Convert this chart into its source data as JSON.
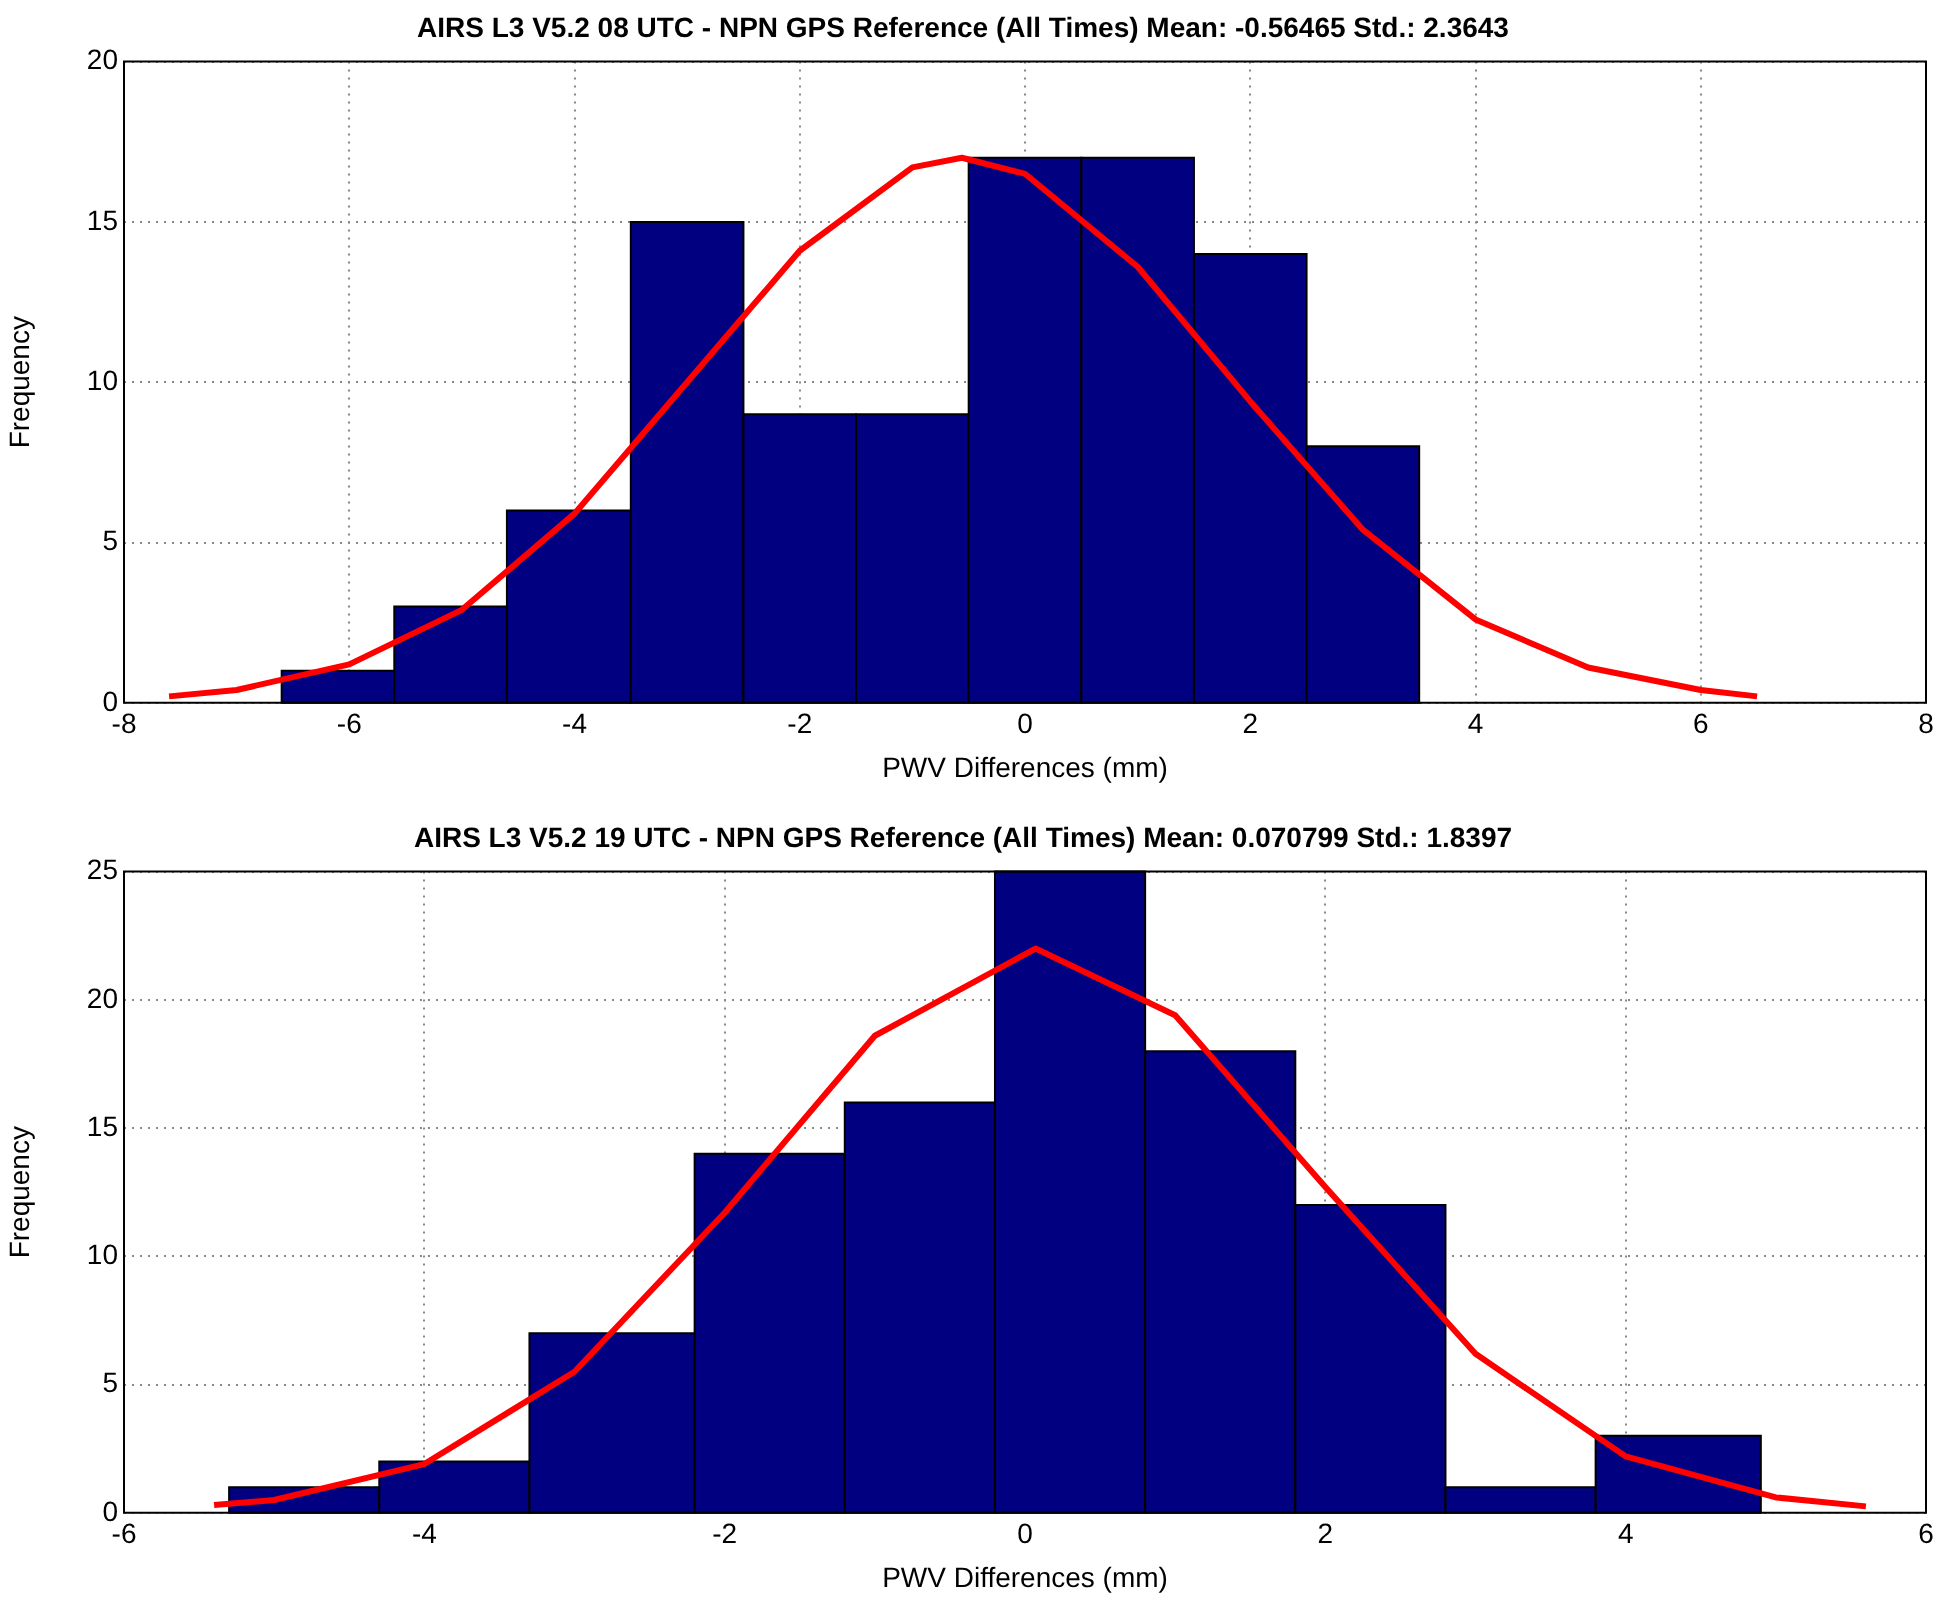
{
  "chart_data": [
    {
      "type": "histogram",
      "title": "AIRS L3 V5.2 08 UTC - NPN GPS Reference (All Times) Mean: -0.56465 Std.: 2.3643",
      "xlabel": "PWV Differences (mm)",
      "ylabel": "Frequency",
      "bins": [
        -6.6,
        -5.6,
        -4.6,
        -3.5,
        -2.5,
        -1.5,
        -0.5,
        0.5,
        1.5,
        2.5,
        3.5
      ],
      "values": [
        1,
        3,
        6,
        15,
        9,
        9,
        17,
        17,
        14,
        8
      ],
      "color": "#000080",
      "xlim": [
        -8,
        8
      ],
      "xticks": [
        -8,
        -6,
        -4,
        -2,
        0,
        2,
        4,
        6,
        8
      ],
      "ylim": [
        0,
        20
      ],
      "yticks": [
        0,
        5,
        10,
        15,
        20
      ],
      "grid": true,
      "series": [
        {
          "type": "line",
          "color": "#ff0000",
          "x": [
            -7.6,
            -7,
            -6,
            -5,
            -4,
            -3,
            -2,
            -1,
            -0.56,
            0,
            1,
            2,
            3,
            4,
            5,
            6,
            6.5
          ],
          "values": [
            0.2,
            0.4,
            1.2,
            2.9,
            5.9,
            10,
            14.1,
            16.7,
            17,
            16.5,
            13.6,
            9.4,
            5.4,
            2.6,
            1.1,
            0.4,
            0.2
          ]
        }
      ]
    },
    {
      "type": "histogram",
      "title": "AIRS L3 V5.2 19 UTC - NPN GPS Reference (All Times) Mean: 0.070799 Std.: 1.8397",
      "xlabel": "PWV Differences (mm)",
      "ylabel": "Frequency",
      "bins": [
        -5.3,
        -4.3,
        -3.3,
        -2.2,
        -1.2,
        -0.2,
        0.8,
        1.8,
        2.8,
        3.8,
        4.9
      ],
      "values": [
        1,
        2,
        7,
        14,
        16,
        25,
        18,
        12,
        1,
        3
      ],
      "color": "#000080",
      "xlim": [
        -6,
        6
      ],
      "xticks": [
        -6,
        -4,
        -2,
        0,
        2,
        4,
        6
      ],
      "ylim": [
        0,
        25
      ],
      "yticks": [
        0,
        5,
        10,
        15,
        20,
        25
      ],
      "grid": true,
      "series": [
        {
          "type": "line",
          "color": "#ff0000",
          "x": [
            -5.4,
            -5,
            -4,
            -3,
            -2,
            -1,
            0.07,
            1,
            2,
            3,
            4,
            5,
            5.6
          ],
          "values": [
            0.3,
            0.5,
            1.9,
            5.5,
            11.7,
            18.6,
            22,
            19.4,
            12.7,
            6.2,
            2.2,
            0.6,
            0.25
          ]
        }
      ]
    }
  ]
}
